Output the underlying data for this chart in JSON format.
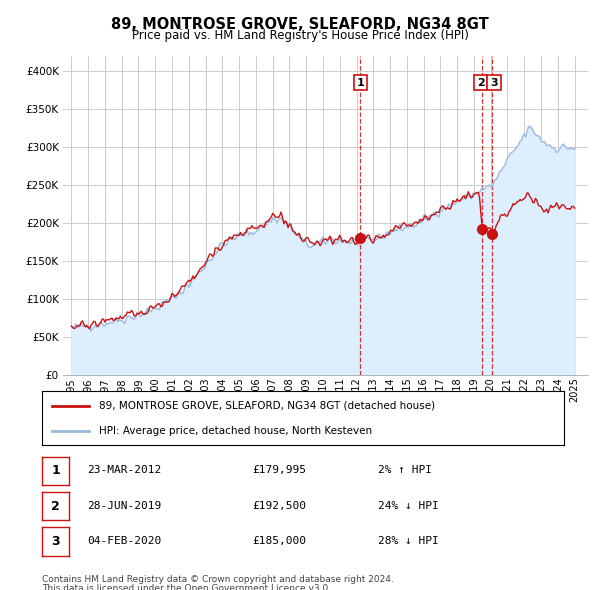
{
  "title": "89, MONTROSE GROVE, SLEAFORD, NG34 8GT",
  "subtitle": "Price paid vs. HM Land Registry's House Price Index (HPI)",
  "legend_line1": "89, MONTROSE GROVE, SLEAFORD, NG34 8GT (detached house)",
  "legend_line2": "HPI: Average price, detached house, North Kesteven",
  "footer1": "Contains HM Land Registry data © Crown copyright and database right 2024.",
  "footer2": "This data is licensed under the Open Government Licence v3.0.",
  "hpi_color": "#99bbdd",
  "hpi_fill_color": "#ddeeff",
  "price_color": "#cc1111",
  "vline_color": "#cc1111",
  "background_color": "#ffffff",
  "grid_color": "#cccccc",
  "ylim": [
    0,
    420000
  ],
  "xlim_start": 1994.5,
  "xlim_end": 2025.8,
  "yticks": [
    0,
    50000,
    100000,
    150000,
    200000,
    250000,
    300000,
    350000,
    400000
  ],
  "xticks": [
    1995,
    1996,
    1997,
    1998,
    1999,
    2000,
    2001,
    2002,
    2003,
    2004,
    2005,
    2006,
    2007,
    2008,
    2009,
    2010,
    2011,
    2012,
    2013,
    2014,
    2015,
    2016,
    2017,
    2018,
    2019,
    2020,
    2021,
    2022,
    2023,
    2024,
    2025
  ],
  "transactions": [
    {
      "label": "1",
      "year": 2012.22,
      "price": 179995
    },
    {
      "label": "2",
      "year": 2019.49,
      "price": 192500
    },
    {
      "label": "3",
      "year": 2020.09,
      "price": 185000
    }
  ],
  "table_rows": [
    {
      "label": "1",
      "date": "23-MAR-2012",
      "price": "£179,995",
      "pct": "2% ↑ HPI"
    },
    {
      "label": "2",
      "date": "28-JUN-2019",
      "price": "£192,500",
      "pct": "24% ↓ HPI"
    },
    {
      "label": "3",
      "date": "04-FEB-2020",
      "price": "£185,000",
      "pct": "28% ↓ HPI"
    }
  ]
}
